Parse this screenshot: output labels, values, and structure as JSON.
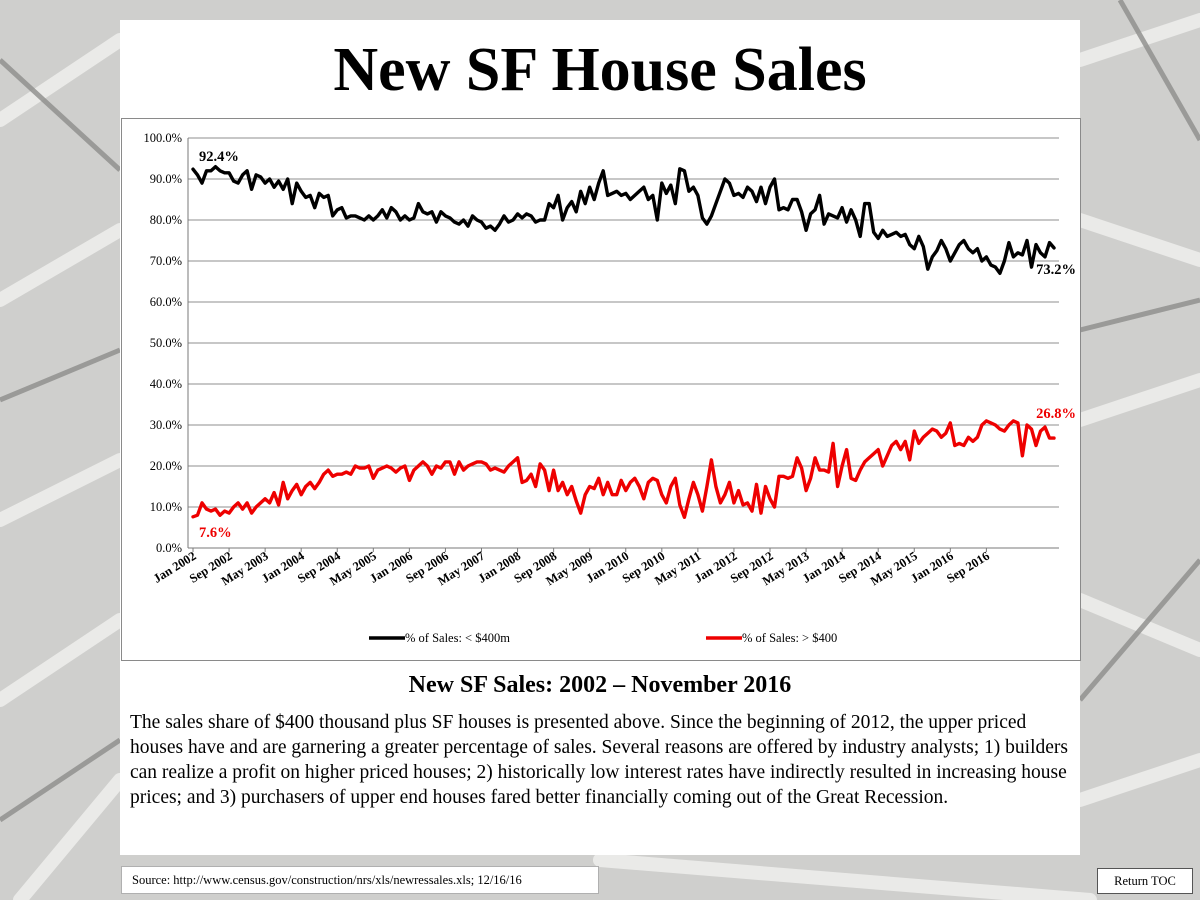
{
  "slide": {
    "title": "New SF House Sales",
    "subtitle": "New SF Sales: 2002 – November 2016",
    "body": "The sales share of $400 thousand plus SF houses is presented above.  Since the beginning of 2012, the upper priced houses have and are garnering a greater percentage of sales.  Several reasons are offered by industry analysts; 1) builders can realize a profit on higher priced houses; 2) historically low interest rates have indirectly resulted in increasing house prices; and 3) purchasers of upper end houses fared better financially coming out of the Great Recession.",
    "source": "Source: http://www.census.gov/construction/nrs/xls/newressales.xls; 12/16/16",
    "return_toc": "Return TOC"
  },
  "chart_data": {
    "type": "line",
    "title": "",
    "xlabel": "",
    "ylabel": "",
    "ylim": [
      0,
      100
    ],
    "ytick_labels": [
      "0.0%",
      "10.0%",
      "20.0%",
      "30.0%",
      "40.0%",
      "50.0%",
      "60.0%",
      "70.0%",
      "80.0%",
      "90.0%",
      "100.0%"
    ],
    "x_start": "Jan 2002",
    "x_end": "Nov 2016",
    "xtick_labels": [
      "Jan 2002",
      "Sep 2002",
      "May 2003",
      "Jan 2004",
      "Sep 2004",
      "May 2005",
      "Jan 2006",
      "Sep 2006",
      "May 2007",
      "Jan 2008",
      "Sep 2008",
      "May 2009",
      "Jan 2010",
      "Sep 2010",
      "May 2011",
      "Jan 2012",
      "Sep 2012",
      "May 2013",
      "Jan 2014",
      "Sep 2014",
      "May 2015",
      "Jan 2016",
      "Sep 2016"
    ],
    "grid": true,
    "legend": "bottom",
    "series": [
      {
        "name": "% of Sales: < $400m",
        "color": "#000000",
        "start_label": "92.4%",
        "end_label": "73.2%",
        "values": [
          92.4,
          91,
          89,
          92,
          92,
          93,
          92,
          91.5,
          91.5,
          89.5,
          89,
          91,
          92,
          87.5,
          91,
          90.5,
          89,
          90,
          88,
          89.5,
          87.5,
          90,
          84,
          89,
          87,
          85.5,
          86,
          83,
          86.5,
          85.5,
          86,
          81,
          82.5,
          83,
          80.5,
          81,
          81,
          80.5,
          80,
          81,
          80,
          81,
          82.5,
          80.5,
          83,
          82,
          80,
          81,
          80,
          80.5,
          84,
          82,
          81.5,
          82,
          79.5,
          82,
          81,
          80.5,
          79.5,
          79,
          80,
          78.5,
          81,
          80,
          79.5,
          78,
          78.5,
          77.5,
          79,
          81,
          79.5,
          80,
          81.5,
          80.5,
          81.5,
          81,
          79.5,
          80,
          80,
          84,
          83,
          86,
          80,
          83,
          84.5,
          82,
          87,
          84,
          88,
          85,
          89,
          92,
          86,
          86.5,
          87,
          86,
          86.5,
          85,
          86,
          87,
          88,
          85,
          86,
          80,
          89,
          86.5,
          88.5,
          84,
          92.5,
          92,
          87,
          88,
          86,
          80.5,
          79,
          81,
          84,
          87,
          90,
          89,
          86,
          86.5,
          85.5,
          88,
          87,
          84.5,
          88,
          84,
          88,
          90,
          82.5,
          83,
          82.5,
          85,
          85,
          82,
          77.5,
          81.5,
          82.5,
          86,
          79,
          81.5,
          81,
          80.5,
          83,
          79.5,
          82.5,
          80,
          76,
          84,
          84,
          77,
          75.5,
          77.5,
          76,
          76.5,
          77,
          76,
          76.5,
          74,
          73,
          76,
          73.5,
          68,
          71,
          72.5,
          75,
          73,
          70,
          72,
          74,
          75,
          73,
          72,
          73,
          70,
          71,
          69,
          68.5,
          67,
          70,
          74.5,
          71,
          72,
          71.5,
          75,
          68.5,
          74,
          72,
          71,
          74.5,
          73.2
        ]
      },
      {
        "name": "% of Sales: > $400",
        "color": "#ee0000",
        "start_label": "7.6%",
        "end_label": "26.8%",
        "values": [
          7.6,
          8,
          11,
          9.5,
          9,
          9.5,
          8,
          9,
          8.5,
          10,
          11,
          9.5,
          11,
          8.5,
          10,
          11,
          12,
          11,
          13.5,
          10.5,
          16,
          12,
          14,
          15.5,
          13,
          15,
          16,
          14.5,
          16,
          18,
          19,
          17.5,
          18,
          18,
          18.5,
          18,
          20,
          19.5,
          19.5,
          20,
          17,
          19,
          19.5,
          20,
          19.5,
          18.5,
          19.5,
          20,
          16.5,
          19,
          20,
          21,
          20,
          18,
          20,
          19.5,
          21,
          21,
          18,
          21,
          19,
          20,
          20.5,
          21,
          21,
          20.5,
          19,
          19.5,
          19,
          18.5,
          20,
          21,
          22,
          16,
          16.5,
          18,
          15,
          20.5,
          19,
          14,
          19,
          14,
          16,
          13,
          15,
          11.5,
          8.5,
          13,
          15,
          14.5,
          17,
          13,
          16,
          13,
          13,
          16.5,
          14,
          16,
          17,
          15,
          12,
          16,
          17,
          16.5,
          13,
          11,
          15,
          17,
          10.5,
          7.5,
          12,
          16,
          13,
          9,
          15,
          21.5,
          15,
          11,
          13,
          16,
          11,
          14,
          10.5,
          11,
          9,
          15.5,
          8.5,
          15,
          12,
          10,
          17.5,
          17.5,
          17,
          17.5,
          22,
          19.5,
          14,
          17,
          22,
          19,
          19,
          18.5,
          25.5,
          15,
          20,
          24,
          17,
          16.5,
          19,
          21,
          22,
          23,
          24,
          20,
          22.5,
          25,
          26,
          24,
          26,
          21.5,
          28.5,
          25.5,
          27,
          28,
          29,
          28.5,
          27,
          28,
          30.5,
          25,
          25.5,
          25,
          27,
          26,
          27,
          30,
          31,
          30.5,
          30,
          29,
          28.5,
          30,
          31,
          30.5,
          22.5,
          30,
          29,
          25,
          28.5,
          29.5,
          26.8,
          26.8
        ]
      }
    ]
  }
}
